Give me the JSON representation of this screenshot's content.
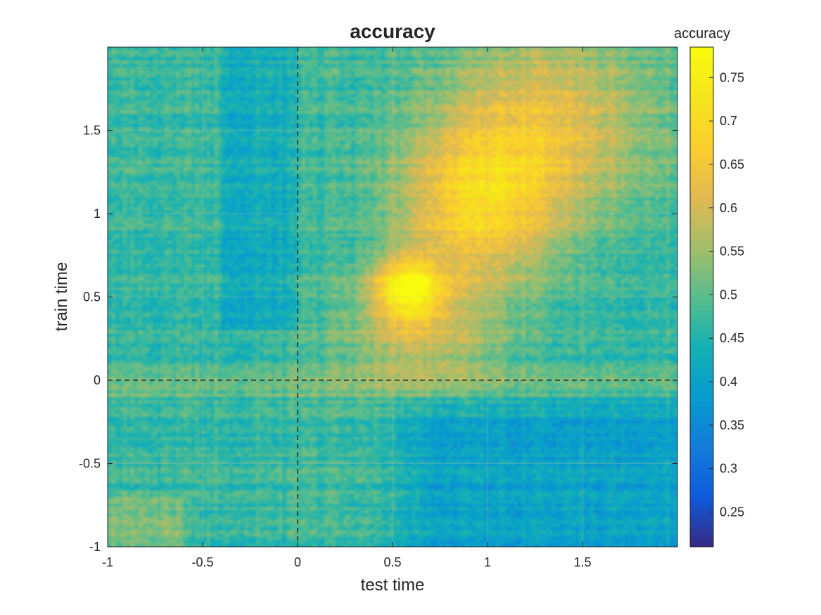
{
  "chart_data": {
    "type": "heatmap",
    "title": "accuracy",
    "xlabel": "test time",
    "ylabel": "train time",
    "xlim": [
      -1,
      2
    ],
    "ylim": [
      -1,
      2
    ],
    "xticks": [
      -1,
      -0.5,
      0,
      0.5,
      1,
      1.5
    ],
    "xtick_labels": [
      "-1",
      "-0.5",
      "0",
      "0.5",
      "1",
      "1.5"
    ],
    "yticks": [
      -1,
      -0.5,
      0,
      0.5,
      1,
      1.5
    ],
    "ytick_labels": [
      "-1",
      "-0.5",
      "0",
      "0.5",
      "1",
      "1.5"
    ],
    "grid": true,
    "reference_lines": [
      {
        "orientation": "vertical",
        "value": 0,
        "style": "dashed"
      },
      {
        "orientation": "horizontal",
        "value": 0,
        "style": "dashed"
      }
    ],
    "colormap": "parula",
    "colorbar": {
      "title": "accuracy",
      "range": [
        0.21,
        0.785
      ],
      "ticks": [
        0.25,
        0.3,
        0.35,
        0.4,
        0.45,
        0.5,
        0.55,
        0.6,
        0.65,
        0.7,
        0.75
      ],
      "tick_labels": [
        "0.25",
        "0.3",
        "0.35",
        "0.4",
        "0.45",
        "0.5",
        "0.55",
        "0.6",
        "0.65",
        "0.7",
        "0.75"
      ]
    },
    "grid_resolution": {
      "test_time_step": 0.02,
      "train_time_step": 0.02
    },
    "features": {
      "baseline": 0.47,
      "peak": {
        "test_time": 0.58,
        "train_time": 0.55,
        "accuracy": 0.77
      },
      "high_region": {
        "test_time": [
          0.4,
          2.0
        ],
        "train_time": [
          0.2,
          2.0
        ],
        "accuracy": 0.65
      },
      "low_region": {
        "test_time": [
          0.4,
          2.0
        ],
        "train_time": [
          -1.0,
          0.0
        ],
        "accuracy": 0.4
      }
    }
  },
  "colors": {
    "background": "#ffffff",
    "axis": "#262626",
    "grid": "#bdbdbd",
    "reference_line": "#1a1a1a"
  }
}
